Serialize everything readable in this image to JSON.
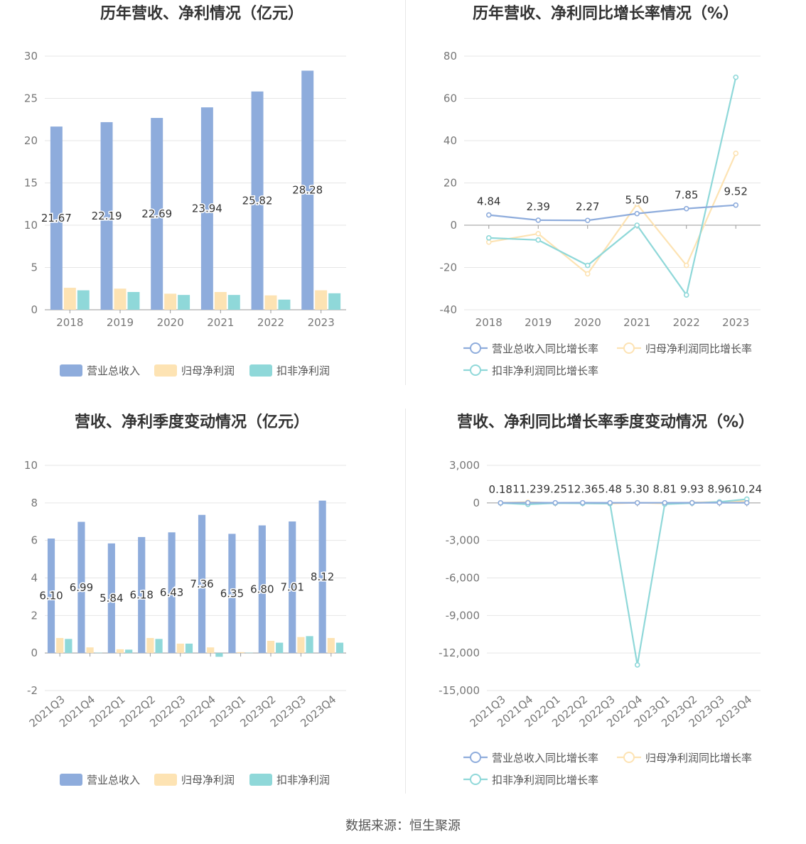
{
  "footer": "数据来源：恒生聚源",
  "colors": {
    "revenue": "#8eacdc",
    "net": "#fde3b3",
    "deducted": "#8fd8d9",
    "grid": "#e6e6e6",
    "axis": "#999999"
  },
  "chart_data": [
    {
      "id": "annual_values",
      "type": "bar",
      "title": "历年营收、净利情况（亿元）",
      "categories": [
        "2018",
        "2019",
        "2020",
        "2021",
        "2022",
        "2023"
      ],
      "ylim": [
        0,
        30
      ],
      "yticks": [
        0,
        5,
        10,
        15,
        20,
        25,
        30
      ],
      "series": [
        {
          "name": "营业总收入",
          "values": [
            21.67,
            22.19,
            22.69,
            23.94,
            25.82,
            28.28
          ],
          "labels": [
            "21.67",
            "22.19",
            "22.69",
            "23.94",
            "25.82",
            "28.28"
          ]
        },
        {
          "name": "归母净利润",
          "values": [
            2.6,
            2.5,
            1.9,
            2.1,
            1.7,
            2.3
          ]
        },
        {
          "name": "扣非净利润",
          "values": [
            2.3,
            2.1,
            1.75,
            1.75,
            1.2,
            1.95
          ]
        }
      ],
      "grid": true,
      "legend": "bottom"
    },
    {
      "id": "annual_growth",
      "type": "line",
      "title": "历年营收、净利同比增长率情况（%）",
      "categories": [
        "2018",
        "2019",
        "2020",
        "2021",
        "2022",
        "2023"
      ],
      "ylim": [
        -40,
        80
      ],
      "yticks": [
        -40,
        -20,
        0,
        20,
        40,
        60,
        80
      ],
      "series": [
        {
          "name": "营业总收入同比增长率",
          "values": [
            4.84,
            2.39,
            2.27,
            5.5,
            7.85,
            9.52
          ],
          "labels": [
            "4.84",
            "2.39",
            "2.27",
            "5.50",
            "7.85",
            "9.52"
          ]
        },
        {
          "name": "归母净利润同比增长率",
          "values": [
            -8,
            -4,
            -23,
            10,
            -19,
            34
          ]
        },
        {
          "name": "扣非净利润同比增长率",
          "values": [
            -6,
            -7,
            -19,
            0,
            -33,
            70
          ]
        }
      ],
      "grid": true,
      "legend": "bottom"
    },
    {
      "id": "quarterly_values",
      "type": "bar",
      "title": "营收、净利季度变动情况（亿元）",
      "categories": [
        "2021Q3",
        "2021Q4",
        "2022Q1",
        "2022Q2",
        "2022Q3",
        "2022Q4",
        "2023Q1",
        "2023Q2",
        "2023Q3",
        "2023Q4"
      ],
      "ylim": [
        -2,
        10
      ],
      "yticks": [
        -2,
        0,
        2,
        4,
        6,
        8,
        10
      ],
      "series": [
        {
          "name": "营业总收入",
          "values": [
            6.1,
            6.99,
            5.84,
            6.18,
            6.43,
            7.36,
            6.35,
            6.8,
            7.01,
            8.12
          ],
          "labels": [
            "6.10",
            "6.99",
            "5.84",
            "6.18",
            "6.43",
            "7.36",
            "6.35",
            "6.80",
            "7.01",
            "8.12"
          ]
        },
        {
          "name": "归母净利润",
          "values": [
            0.8,
            0.3,
            0.2,
            0.8,
            0.5,
            0.3,
            0.05,
            0.65,
            0.85,
            0.8
          ]
        },
        {
          "name": "扣非净利润",
          "values": [
            0.75,
            0.02,
            0.18,
            0.75,
            0.5,
            -0.2,
            0.02,
            0.55,
            0.9,
            0.55
          ]
        }
      ],
      "grid": true,
      "legend": "bottom"
    },
    {
      "id": "quarterly_growth",
      "type": "line",
      "title": "营收、净利同比增长率季度变动情况（%）",
      "categories": [
        "2021Q3",
        "2021Q4",
        "2022Q1",
        "2022Q2",
        "2022Q3",
        "2022Q4",
        "2023Q1",
        "2023Q2",
        "2023Q3",
        "2023Q4"
      ],
      "ylim": [
        -15000,
        3000
      ],
      "yticks": [
        -15000,
        -12000,
        -9000,
        -6000,
        -3000,
        0,
        3000
      ],
      "yticklabels": [
        "-15,000",
        "-12,000",
        "-9,000",
        "-6,000",
        "-3,000",
        "0",
        "3,000"
      ],
      "series": [
        {
          "name": "营业总收入同比增长率",
          "values": [
            0.18,
            11.23,
            9.25,
            12.36,
            5.48,
            5.3,
            8.81,
            9.93,
            8.96,
            10.24
          ],
          "labels": [
            "0.18",
            "11.23",
            "9.25",
            "12.36",
            "5.48",
            "5.30",
            "8.81",
            "9.93",
            "8.96",
            "10.24"
          ]
        },
        {
          "name": "归母净利润同比增长率",
          "values": [
            10,
            60,
            -20,
            -30,
            -60,
            20,
            -50,
            30,
            80,
            150
          ]
        },
        {
          "name": "扣非净利润同比增长率",
          "values": [
            -10,
            -120,
            -20,
            -40,
            -60,
            -12950,
            -100,
            -20,
            80,
            300
          ]
        }
      ],
      "grid": true,
      "legend": "bottom"
    }
  ]
}
